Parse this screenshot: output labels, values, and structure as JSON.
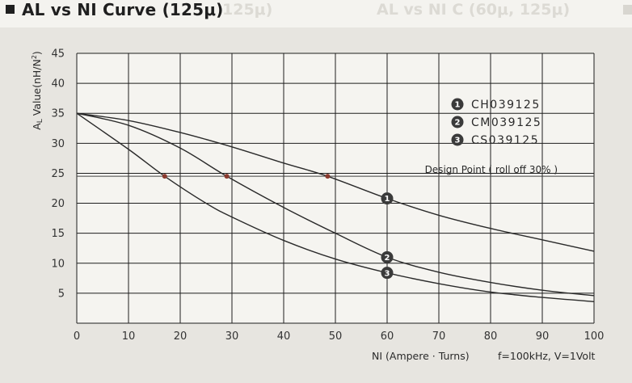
{
  "header": {
    "title": "AL vs NI Curve (125μ)",
    "ghost_left": "125μ)",
    "ghost_right": "AL vs NI C    (60μ, 125μ)"
  },
  "colors": {
    "plot_bg": "#f5f4f0",
    "grid": "#1e1e1e",
    "curve": "#2a2a2a",
    "badge": "#3a3a3a"
  },
  "chart_data": {
    "type": "line",
    "title": "AL vs NI Curve (125μ)",
    "xlabel": "NI (Ampere · Turns)",
    "ylabel": "AL Value(nH/N²)",
    "xlim": [
      0,
      100
    ],
    "ylim": [
      0,
      45
    ],
    "x_ticks": [
      "0",
      "10",
      "20",
      "30",
      "40",
      "50",
      "60",
      "70",
      "80",
      "90",
      "100"
    ],
    "y_ticks": [
      "5",
      "10",
      "15",
      "20",
      "25",
      "30",
      "35",
      "40",
      "45"
    ],
    "grid": true,
    "condition_note": "f=100kHz, V=1Volt",
    "design_point": {
      "label": "Design Point ( roll off 30% )",
      "y": 24.5
    },
    "legend_position": "top-right",
    "series": [
      {
        "name": "CH039125",
        "badge": "1",
        "x": [
          0,
          10,
          20,
          30,
          40,
          48.5,
          60,
          70,
          80,
          90,
          100
        ],
        "y": [
          35,
          33.8,
          31.8,
          29.4,
          26.7,
          24.5,
          20.8,
          18.0,
          15.8,
          13.9,
          12.0
        ],
        "design_point_x": 48.5,
        "label_at_x": 60
      },
      {
        "name": "CM039125",
        "badge": "2",
        "x": [
          0,
          10,
          20,
          29,
          40,
          50,
          60,
          70,
          80,
          90,
          100
        ],
        "y": [
          35,
          33.0,
          29.2,
          24.5,
          19.3,
          15.0,
          11.0,
          8.5,
          6.8,
          5.5,
          4.6
        ],
        "design_point_x": 29,
        "label_at_x": 60
      },
      {
        "name": "CS039125",
        "badge": "3",
        "x": [
          0,
          10,
          17,
          25,
          30,
          40,
          50,
          60,
          70,
          80,
          90,
          100
        ],
        "y": [
          35,
          29.0,
          24.5,
          20.0,
          17.7,
          13.8,
          10.7,
          8.4,
          6.6,
          5.2,
          4.3,
          3.6
        ],
        "design_point_x": 17,
        "label_at_x": 60
      }
    ]
  }
}
